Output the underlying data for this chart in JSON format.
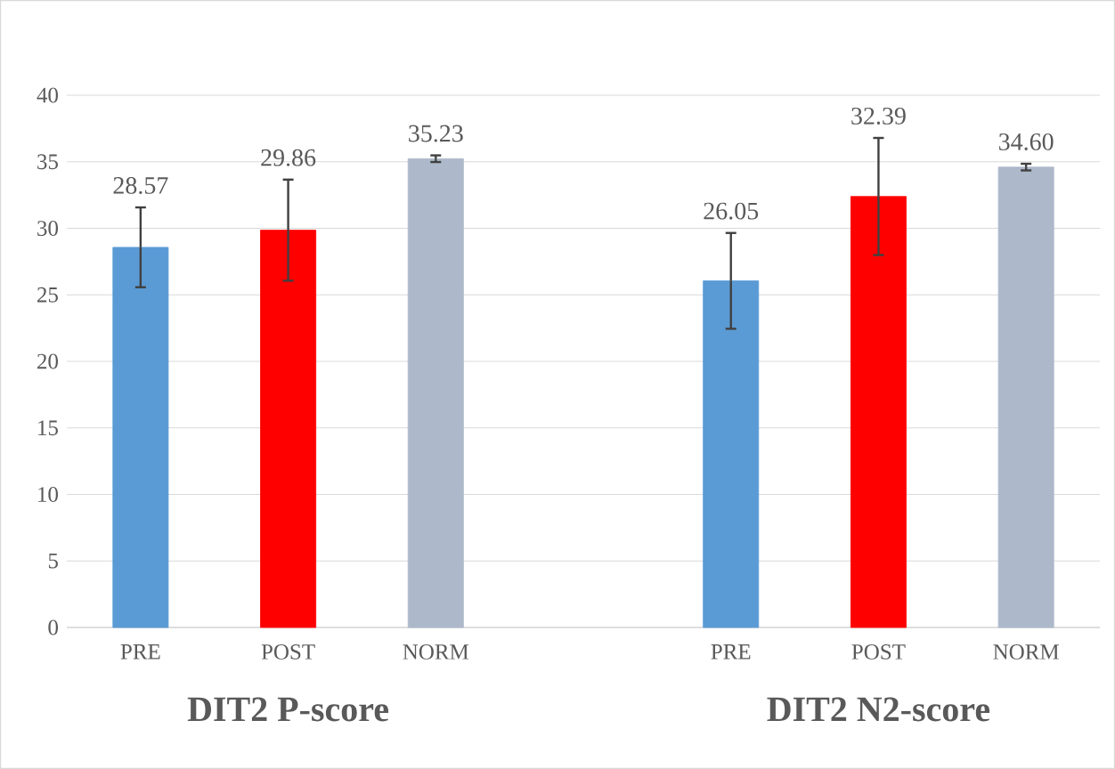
{
  "chart_data": {
    "type": "bar",
    "categories": [
      "PRE",
      "POST",
      "NORM",
      null,
      "PRE",
      "POST",
      "NORM"
    ],
    "values": [
      28.57,
      29.86,
      35.23,
      null,
      26.05,
      32.39,
      34.6
    ],
    "value_labels": [
      "28.57",
      "29.86",
      "35.23",
      null,
      "26.05",
      "32.39",
      "34.60"
    ],
    "errors": [
      3.0,
      3.8,
      0.25,
      null,
      3.6,
      4.4,
      0.25
    ],
    "colors": [
      "#5b9bd5",
      "#ff0000",
      "#adb9ca",
      null,
      "#5b9bd5",
      "#ff0000",
      "#adb9ca"
    ],
    "ylim": [
      0,
      40
    ],
    "yticks": [
      0,
      5,
      10,
      15,
      20,
      25,
      30,
      35,
      40
    ],
    "grid": "y",
    "annotations": [
      "DIT2 P-score",
      "DIT2 N2-score"
    ]
  }
}
